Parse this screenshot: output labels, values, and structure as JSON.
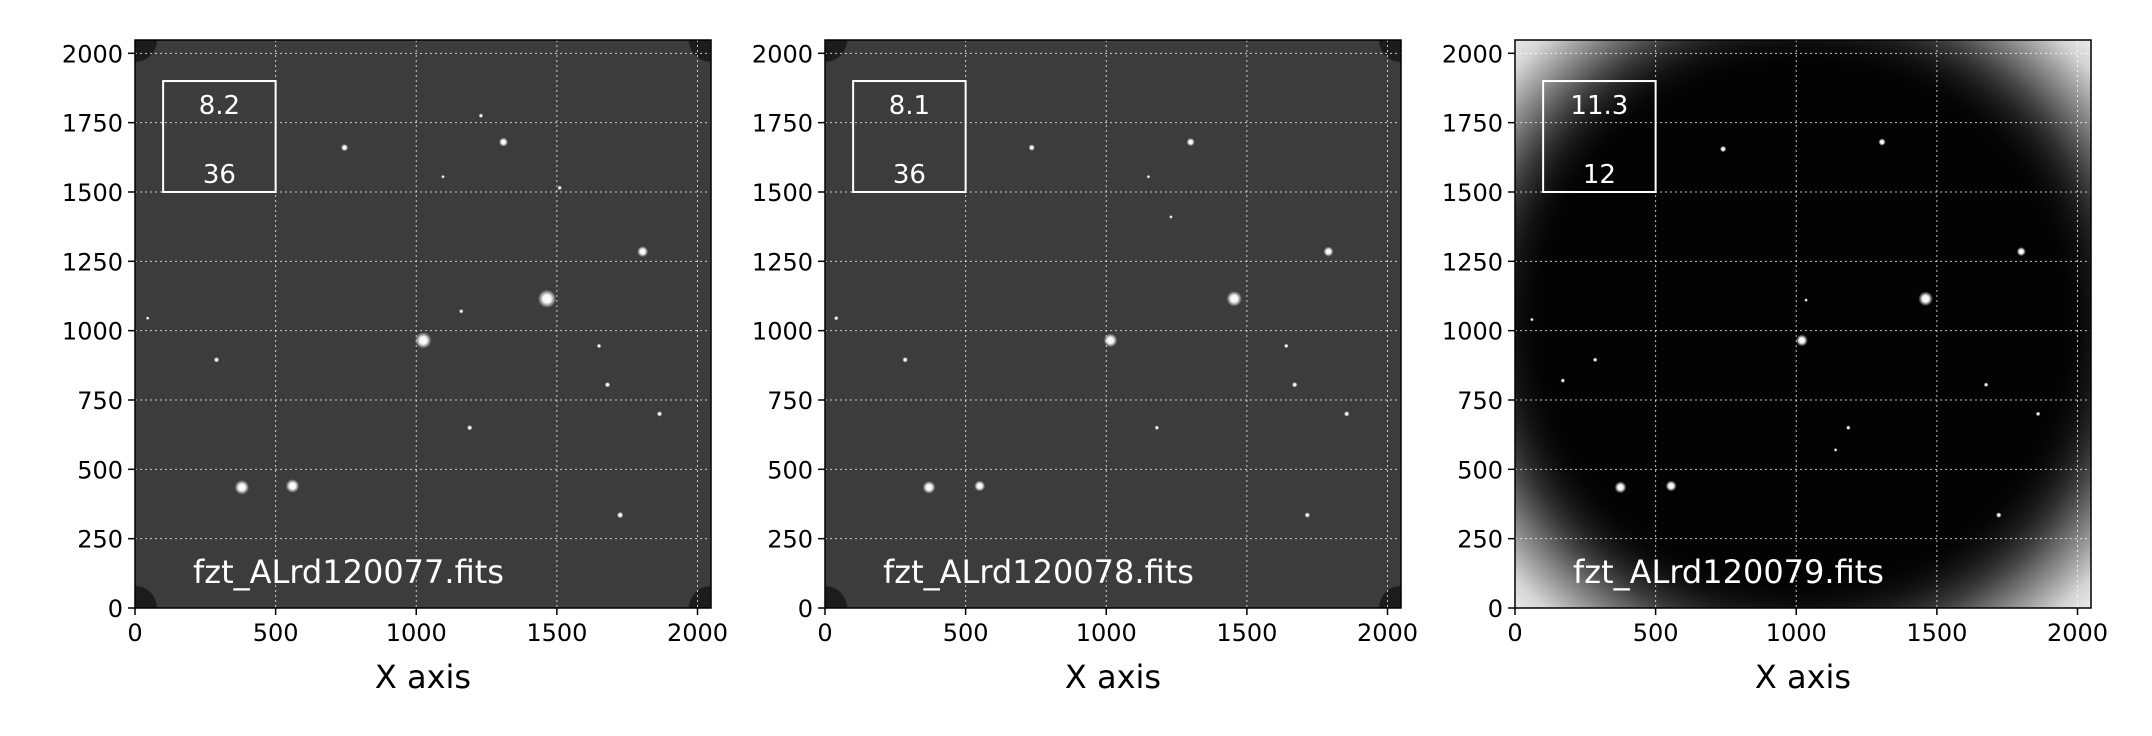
{
  "chart_data": [
    {
      "type": "image",
      "filename": "fzt_ALrd120077.fits",
      "box_values": [
        "8.2",
        "36"
      ],
      "xlabel": "X axis",
      "xlim": [
        0,
        2048
      ],
      "ylim": [
        0,
        2048
      ],
      "xticks": [
        0,
        500,
        1000,
        1500,
        2000
      ],
      "yticks": [
        0,
        250,
        500,
        750,
        1000,
        1250,
        1500,
        1750,
        2000
      ],
      "grid": true,
      "background": "#3c3c3c",
      "vignette": false,
      "box_region": {
        "x": [
          100,
          500
        ],
        "y": [
          1500,
          1900
        ]
      },
      "stars": [
        {
          "x": 1025,
          "y": 965,
          "r": 18
        },
        {
          "x": 1465,
          "y": 1115,
          "r": 20
        },
        {
          "x": 380,
          "y": 435,
          "r": 16
        },
        {
          "x": 560,
          "y": 440,
          "r": 15
        },
        {
          "x": 1805,
          "y": 1285,
          "r": 12
        },
        {
          "x": 1310,
          "y": 1680,
          "r": 10
        },
        {
          "x": 745,
          "y": 1660,
          "r": 8
        },
        {
          "x": 1725,
          "y": 335,
          "r": 7
        },
        {
          "x": 1190,
          "y": 650,
          "r": 6
        },
        {
          "x": 1680,
          "y": 805,
          "r": 6
        },
        {
          "x": 1865,
          "y": 700,
          "r": 6
        },
        {
          "x": 290,
          "y": 895,
          "r": 6
        },
        {
          "x": 1650,
          "y": 945,
          "r": 5
        },
        {
          "x": 1160,
          "y": 1070,
          "r": 5
        },
        {
          "x": 1230,
          "y": 1775,
          "r": 5
        },
        {
          "x": 1510,
          "y": 1515,
          "r": 5
        },
        {
          "x": 1095,
          "y": 1555,
          "r": 4
        },
        {
          "x": 45,
          "y": 1045,
          "r": 4
        }
      ]
    },
    {
      "type": "image",
      "filename": "fzt_ALrd120078.fits",
      "box_values": [
        "8.1",
        "36"
      ],
      "xlabel": "X axis",
      "xlim": [
        0,
        2048
      ],
      "ylim": [
        0,
        2048
      ],
      "xticks": [
        0,
        500,
        1000,
        1500,
        2000
      ],
      "yticks": [
        0,
        250,
        500,
        750,
        1000,
        1250,
        1500,
        1750,
        2000
      ],
      "grid": true,
      "background": "#3c3c3c",
      "vignette": false,
      "box_region": {
        "x": [
          100,
          500
        ],
        "y": [
          1500,
          1900
        ]
      },
      "stars": [
        {
          "x": 1015,
          "y": 965,
          "r": 15
        },
        {
          "x": 1455,
          "y": 1115,
          "r": 17
        },
        {
          "x": 370,
          "y": 435,
          "r": 14
        },
        {
          "x": 550,
          "y": 440,
          "r": 12
        },
        {
          "x": 1790,
          "y": 1285,
          "r": 11
        },
        {
          "x": 1300,
          "y": 1680,
          "r": 9
        },
        {
          "x": 735,
          "y": 1660,
          "r": 7
        },
        {
          "x": 1715,
          "y": 335,
          "r": 6
        },
        {
          "x": 1180,
          "y": 650,
          "r": 5
        },
        {
          "x": 1670,
          "y": 805,
          "r": 6
        },
        {
          "x": 1855,
          "y": 700,
          "r": 6
        },
        {
          "x": 285,
          "y": 895,
          "r": 6
        },
        {
          "x": 1640,
          "y": 945,
          "r": 5
        },
        {
          "x": 1150,
          "y": 1555,
          "r": 4
        },
        {
          "x": 1230,
          "y": 1410,
          "r": 4
        },
        {
          "x": 40,
          "y": 1045,
          "r": 5
        }
      ]
    },
    {
      "type": "image",
      "filename": "fzt_ALrd120079.fits",
      "box_values": [
        "11.3",
        "12"
      ],
      "xlabel": "X axis",
      "xlim": [
        0,
        2048
      ],
      "ylim": [
        0,
        2048
      ],
      "xticks": [
        0,
        500,
        1000,
        1500,
        2000
      ],
      "yticks": [
        0,
        250,
        500,
        750,
        1000,
        1250,
        1500,
        1750,
        2000
      ],
      "grid": true,
      "background": "#030303",
      "vignette": true,
      "box_region": {
        "x": [
          100,
          500
        ],
        "y": [
          1500,
          1900
        ]
      },
      "stars": [
        {
          "x": 1020,
          "y": 965,
          "r": 13
        },
        {
          "x": 1460,
          "y": 1115,
          "r": 16
        },
        {
          "x": 375,
          "y": 435,
          "r": 13
        },
        {
          "x": 555,
          "y": 440,
          "r": 12
        },
        {
          "x": 1800,
          "y": 1285,
          "r": 10
        },
        {
          "x": 1305,
          "y": 1680,
          "r": 8
        },
        {
          "x": 740,
          "y": 1655,
          "r": 7
        },
        {
          "x": 1720,
          "y": 335,
          "r": 6
        },
        {
          "x": 1185,
          "y": 650,
          "r": 5
        },
        {
          "x": 1675,
          "y": 805,
          "r": 5
        },
        {
          "x": 1860,
          "y": 700,
          "r": 5
        },
        {
          "x": 285,
          "y": 895,
          "r": 5
        },
        {
          "x": 170,
          "y": 820,
          "r": 5
        },
        {
          "x": 1140,
          "y": 570,
          "r": 4
        },
        {
          "x": 60,
          "y": 1040,
          "r": 4
        },
        {
          "x": 1035,
          "y": 1110,
          "r": 4
        }
      ]
    }
  ]
}
